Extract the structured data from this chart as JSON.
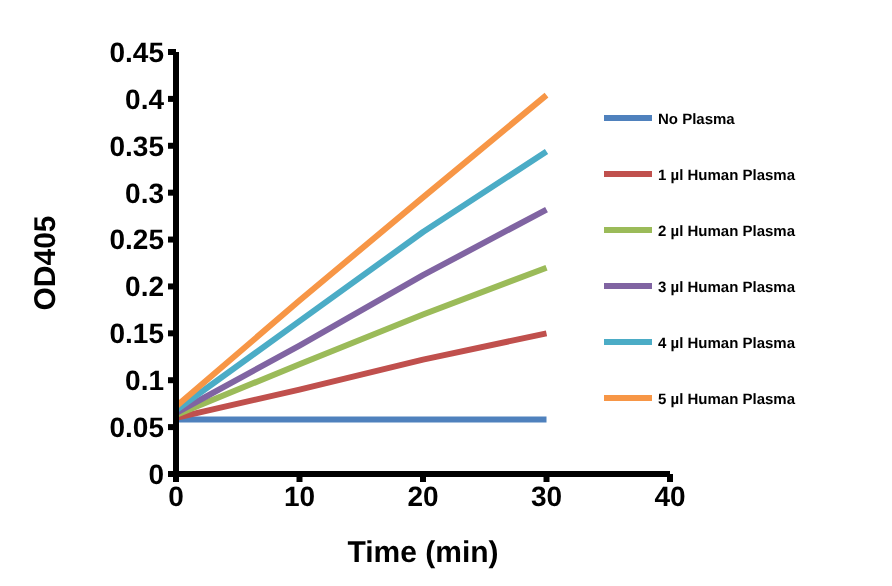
{
  "chart_data": {
    "type": "line",
    "xlabel": "Time (min)",
    "ylabel": "OD405",
    "x": [
      0,
      10,
      20,
      30
    ],
    "series": [
      {
        "name": "No Plasma",
        "color": "#4f81bd",
        "values": [
          0.058,
          0.058,
          0.058,
          0.058
        ]
      },
      {
        "name": "1 µl Human Plasma",
        "color": "#c0504d",
        "values": [
          0.06,
          0.09,
          0.122,
          0.15
        ]
      },
      {
        "name": "2 µl Human Plasma",
        "color": "#9bbb59",
        "values": [
          0.063,
          0.117,
          0.17,
          0.22
        ]
      },
      {
        "name": "3 µl Human Plasma",
        "color": "#8064a2",
        "values": [
          0.065,
          0.137,
          0.212,
          0.282
        ]
      },
      {
        "name": "4 µl Human Plasma",
        "color": "#4bacc6",
        "values": [
          0.068,
          0.163,
          0.258,
          0.344
        ]
      },
      {
        "name": "5 µl Human Plasma",
        "color": "#f79646",
        "values": [
          0.072,
          0.185,
          0.295,
          0.404
        ]
      }
    ],
    "xlim": [
      0,
      40
    ],
    "xticks": [
      0,
      10,
      20,
      30,
      40
    ],
    "ylim": [
      0,
      0.45
    ],
    "yticks": [
      0,
      0.05,
      0.1,
      0.15,
      0.2,
      0.25,
      0.3,
      0.35,
      0.4,
      0.45
    ],
    "grid": false,
    "legend": "right",
    "marker": "none",
    "line_style": "solid"
  }
}
